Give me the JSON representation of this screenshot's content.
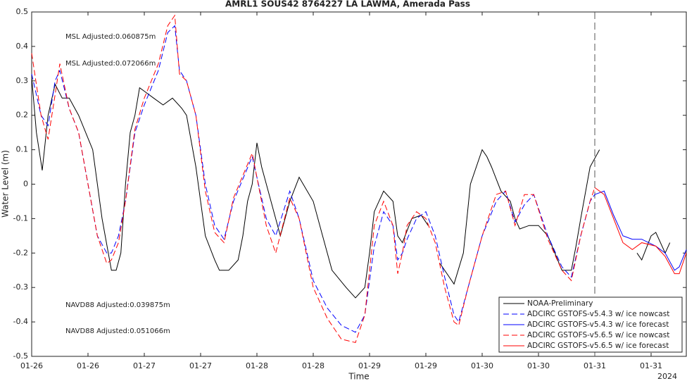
{
  "chart_data": {
    "type": "line",
    "title": "AMRL1 SOUS42 8764227 LA LAWMA, Amerada Pass",
    "x_label": "Time",
    "y_label": "Water Level (m)",
    "x_corner_label": "2024",
    "xlim": [
      0,
      139.5
    ],
    "ylim": [
      -0.5,
      0.5
    ],
    "xticks": [
      {
        "value": 0,
        "label": "01-26"
      },
      {
        "value": 12,
        "label": "01-26"
      },
      {
        "value": 24,
        "label": "01-27"
      },
      {
        "value": 36,
        "label": "01-27"
      },
      {
        "value": 48,
        "label": "01-28"
      },
      {
        "value": 60,
        "label": "01-28"
      },
      {
        "value": 72,
        "label": "01-29"
      },
      {
        "value": 84,
        "label": "01-29"
      },
      {
        "value": 96,
        "label": "01-30"
      },
      {
        "value": 108,
        "label": "01-30"
      },
      {
        "value": 120,
        "label": "01-31"
      },
      {
        "value": 132,
        "label": "01-31"
      }
    ],
    "yticks": [
      -0.5,
      -0.4,
      -0.3,
      -0.2,
      -0.1,
      0,
      0.1,
      0.2,
      0.3,
      0.4,
      0.5
    ],
    "vline": 120,
    "legend": "lower right",
    "annotations": [
      {
        "text": "MSL Adjusted:0.060875m",
        "color": "#0000ff"
      },
      {
        "text": "MSL Adjusted:0.072066m",
        "color": "#ff0000"
      },
      {
        "text": "NAVD88 Adjusted:0.039875m",
        "color": "#0000ff"
      },
      {
        "text": "NAVD88 Adjusted:0.051066m",
        "color": "#ff0000"
      }
    ],
    "series": [
      {
        "name": "NOAA-Preliminary",
        "color": "#000000",
        "dashed": false,
        "x": [
          0,
          1,
          2.25,
          3.5,
          5,
          6.5,
          8,
          10,
          13,
          15,
          17,
          18,
          19,
          20,
          21,
          22,
          23,
          24,
          26,
          28,
          30,
          32,
          33,
          35,
          37,
          39,
          40,
          42,
          44,
          45,
          46,
          47,
          48,
          49,
          51,
          53,
          55,
          57,
          60,
          62,
          64,
          67,
          69,
          71,
          72,
          73,
          75,
          77,
          78,
          79,
          81,
          83,
          84.5,
          86,
          87,
          90,
          92,
          93.5,
          96,
          97,
          98,
          100,
          102,
          103,
          104,
          106,
          108,
          110,
          113,
          115,
          116,
          117,
          119,
          121,
          125,
          129,
          130,
          132,
          133,
          135,
          136
        ],
        "values": [
          0.31,
          0.15,
          0.04,
          0.2,
          0.29,
          0.25,
          0.25,
          0.2,
          0.1,
          -0.1,
          -0.25,
          -0.25,
          -0.2,
          0,
          0.15,
          0.2,
          0.28,
          0.27,
          0.25,
          0.23,
          0.25,
          0.22,
          0.2,
          0.05,
          -0.15,
          -0.22,
          -0.25,
          -0.25,
          -0.22,
          -0.15,
          -0.05,
          0,
          0.12,
          0.05,
          -0.05,
          -0.15,
          -0.05,
          0.02,
          -0.05,
          -0.15,
          -0.25,
          -0.3,
          -0.33,
          -0.3,
          -0.2,
          -0.08,
          -0.02,
          -0.05,
          -0.15,
          -0.17,
          -0.1,
          -0.09,
          -0.12,
          null,
          -0.23,
          -0.29,
          -0.2,
          0.0,
          0.1,
          0.08,
          0.05,
          -0.02,
          -0.05,
          -0.1,
          -0.13,
          -0.12,
          -0.12,
          -0.15,
          -0.25,
          -0.25,
          -0.18,
          -0.1,
          0.05,
          0.1,
          null,
          -0.2,
          -0.22,
          -0.15,
          -0.14,
          -0.2,
          -0.17
        ]
      },
      {
        "name": "ADCIRC GSTOFS-v5.4.3 w/ ice nowcast",
        "color": "#0000ff",
        "dashed": true,
        "x": [
          0,
          2,
          3.5,
          5,
          6,
          8,
          10,
          12,
          14,
          16,
          17,
          18.5,
          20,
          22,
          24,
          27,
          29,
          30.5,
          31.5,
          33,
          35,
          37,
          39,
          41,
          43,
          47,
          50,
          52,
          55,
          57,
          60,
          63,
          66,
          69,
          71,
          73,
          75,
          77,
          78,
          79,
          80,
          82,
          84,
          86,
          88,
          90,
          91,
          93,
          96,
          99,
          101,
          103,
          105,
          107,
          110,
          113,
          115,
          117,
          119,
          120
        ],
        "values": [
          0.32,
          0.2,
          0.17,
          0.3,
          0.33,
          0.22,
          0.15,
          0.0,
          -0.15,
          -0.2,
          -0.2,
          -0.15,
          -0.05,
          0.15,
          0.23,
          0.33,
          0.44,
          0.46,
          0.33,
          0.3,
          0.2,
          0.0,
          -0.12,
          -0.16,
          -0.05,
          0.08,
          -0.1,
          -0.15,
          -0.02,
          -0.1,
          -0.28,
          -0.36,
          -0.41,
          -0.43,
          -0.38,
          -0.18,
          -0.08,
          -0.12,
          -0.22,
          -0.2,
          -0.16,
          -0.1,
          -0.08,
          -0.15,
          -0.27,
          -0.38,
          -0.4,
          -0.3,
          -0.15,
          -0.05,
          -0.02,
          -0.11,
          -0.06,
          -0.03,
          -0.15,
          -0.24,
          -0.27,
          -0.15,
          -0.05,
          -0.03
        ]
      },
      {
        "name": "ADCIRC GSTOFS-v5.4.3 w/ ice forecast",
        "color": "#0000ff",
        "dashed": false,
        "x": [
          120,
          122,
          124,
          126,
          128,
          130,
          133,
          135,
          137,
          138,
          139.5
        ],
        "values": [
          -0.03,
          -0.02,
          -0.09,
          -0.15,
          -0.16,
          -0.16,
          -0.18,
          -0.2,
          -0.25,
          -0.24,
          -0.19
        ]
      },
      {
        "name": "ADCIRC GSTOFS-v5.6.5 w/ ice nowcast",
        "color": "#ff0000",
        "dashed": true,
        "x": [
          0,
          2,
          3.5,
          5,
          6,
          8,
          10,
          12,
          14,
          16,
          17,
          18.5,
          20,
          22,
          24,
          27,
          29,
          30.5,
          31.5,
          33,
          35,
          37,
          39,
          41,
          43,
          47,
          50,
          52,
          55,
          57,
          60,
          63,
          66,
          69,
          71,
          73,
          75,
          77,
          78,
          79,
          80,
          82,
          84,
          86,
          88,
          90,
          91,
          93,
          96,
          99,
          101,
          103,
          105,
          107,
          110,
          113,
          115,
          117,
          119,
          120
        ],
        "values": [
          0.38,
          0.2,
          0.13,
          0.26,
          0.35,
          0.22,
          0.15,
          0.0,
          -0.15,
          -0.23,
          -0.22,
          -0.17,
          -0.05,
          0.16,
          0.25,
          0.35,
          0.46,
          0.49,
          0.32,
          0.3,
          0.2,
          -0.02,
          -0.14,
          -0.17,
          -0.04,
          0.09,
          -0.12,
          -0.2,
          -0.04,
          -0.1,
          -0.3,
          -0.39,
          -0.45,
          -0.46,
          -0.38,
          -0.12,
          -0.05,
          -0.12,
          -0.26,
          -0.2,
          -0.12,
          -0.08,
          -0.1,
          -0.17,
          -0.3,
          -0.4,
          -0.41,
          -0.3,
          -0.15,
          -0.03,
          -0.02,
          -0.12,
          -0.03,
          -0.03,
          -0.16,
          -0.25,
          -0.28,
          -0.15,
          -0.05,
          -0.01
        ]
      },
      {
        "name": "ADCIRC GSTOFS-v5.6.5 w/ ice forecast",
        "color": "#ff0000",
        "dashed": false,
        "x": [
          120,
          122,
          124,
          126,
          128,
          130,
          133,
          135,
          137,
          138,
          139.5
        ],
        "values": [
          -0.01,
          -0.03,
          -0.1,
          -0.17,
          -0.19,
          -0.17,
          -0.18,
          -0.21,
          -0.26,
          -0.26,
          -0.2
        ]
      }
    ]
  }
}
